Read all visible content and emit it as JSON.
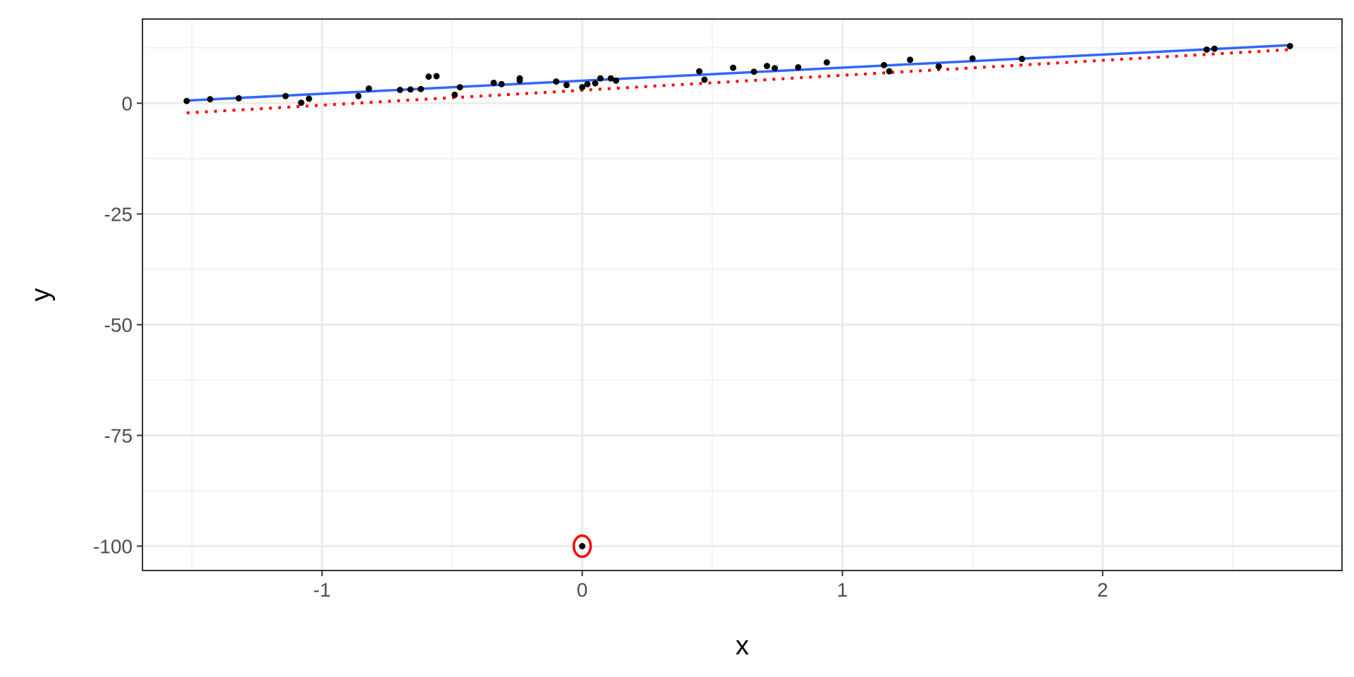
{
  "chart_data": {
    "type": "scatter",
    "xlabel": "x",
    "ylabel": "y",
    "xlim": [
      -1.69,
      2.92
    ],
    "ylim": [
      -105.5,
      19.0
    ],
    "x_ticks": [
      -1,
      0,
      1,
      2
    ],
    "x_tick_labels": [
      "-1",
      "0",
      "1",
      "2"
    ],
    "x_minor_ticks": [
      -1.5,
      -0.5,
      0.5,
      1.5,
      2.5
    ],
    "y_ticks": [
      -100,
      -75,
      -50,
      -25,
      0
    ],
    "y_tick_labels": [
      "-100",
      "-75",
      "-50",
      "-25",
      "0"
    ],
    "y_minor_ticks": [
      -87.5,
      -62.5,
      -37.5,
      -12.5,
      12.5
    ],
    "grid": true,
    "series": [
      {
        "kind": "points",
        "color": "#000000",
        "points": [
          [
            -1.52,
            0.5
          ],
          [
            -1.43,
            0.9
          ],
          [
            -1.32,
            1.1
          ],
          [
            -1.14,
            1.6
          ],
          [
            -1.08,
            0.1
          ],
          [
            -1.05,
            1.0
          ],
          [
            -0.86,
            1.6
          ],
          [
            -0.82,
            3.3
          ],
          [
            -0.7,
            3.0
          ],
          [
            -0.66,
            3.1
          ],
          [
            -0.62,
            3.2
          ],
          [
            -0.59,
            6.0
          ],
          [
            -0.56,
            6.1
          ],
          [
            -0.49,
            1.9
          ],
          [
            -0.47,
            3.6
          ],
          [
            -0.34,
            4.6
          ],
          [
            -0.31,
            4.3
          ],
          [
            -0.24,
            5.1
          ],
          [
            -0.24,
            5.6
          ],
          [
            -0.1,
            4.9
          ],
          [
            -0.06,
            4.1
          ],
          [
            0.0,
            3.6
          ],
          [
            0.02,
            4.3
          ],
          [
            0.05,
            4.5
          ],
          [
            0.07,
            5.6
          ],
          [
            0.11,
            5.6
          ],
          [
            0.13,
            5.1
          ],
          [
            0.45,
            7.2
          ],
          [
            0.47,
            5.3
          ],
          [
            0.58,
            8.0
          ],
          [
            0.66,
            7.1
          ],
          [
            0.71,
            8.4
          ],
          [
            0.74,
            7.9
          ],
          [
            0.83,
            8.1
          ],
          [
            0.94,
            9.2
          ],
          [
            1.16,
            8.6
          ],
          [
            1.18,
            7.2
          ],
          [
            1.26,
            9.8
          ],
          [
            1.37,
            8.3
          ],
          [
            1.5,
            10.1
          ],
          [
            1.69,
            10.0
          ],
          [
            2.4,
            12.1
          ],
          [
            2.43,
            12.3
          ],
          [
            2.72,
            12.9
          ]
        ]
      },
      {
        "kind": "outlier",
        "color": "#000000",
        "highlight_color": "#ff0000",
        "points": [
          [
            0.0,
            -100.0
          ]
        ]
      },
      {
        "kind": "line",
        "style": "solid",
        "color": "#3366ff",
        "points": [
          [
            -1.52,
            0.6
          ],
          [
            2.72,
            13.1
          ]
        ]
      },
      {
        "kind": "line",
        "style": "dotted",
        "color": "#ff0000",
        "points": [
          [
            -1.52,
            -2.2
          ],
          [
            2.72,
            12.1
          ]
        ]
      }
    ]
  }
}
